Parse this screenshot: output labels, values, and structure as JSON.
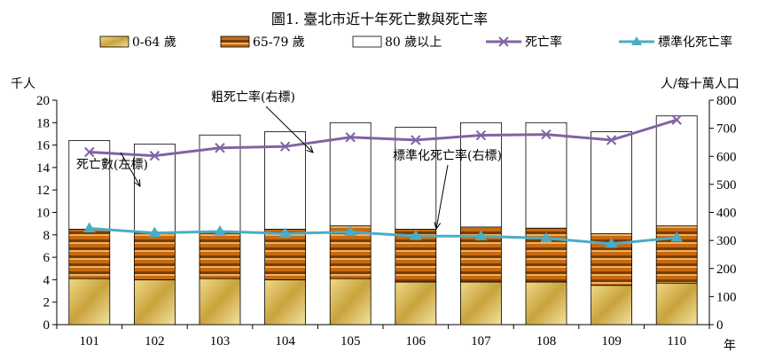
{
  "chart_data": {
    "type": "bar",
    "title": "圖1. 臺北市近十年死亡數與死亡率",
    "y_left_unit": "千人",
    "y_right_unit": "人/每十萬人口",
    "x_unit": "年",
    "categories": [
      "101",
      "102",
      "103",
      "104",
      "105",
      "106",
      "107",
      "108",
      "109",
      "110"
    ],
    "y_left_range": [
      0,
      20
    ],
    "y_left_ticks": [
      "0",
      "2",
      "4",
      "6",
      "8",
      "10",
      "12",
      "14",
      "16",
      "18",
      "20"
    ],
    "y_right_range": [
      0,
      800
    ],
    "y_right_ticks": [
      "0",
      "100",
      "200",
      "300",
      "400",
      "500",
      "600",
      "700",
      "800"
    ],
    "stack_series": [
      {
        "name": "0-64 歲",
        "color": "#c8a23a",
        "values": [
          4.1,
          4.0,
          4.1,
          4.0,
          4.1,
          3.8,
          3.8,
          3.8,
          3.5,
          3.7
        ]
      },
      {
        "name": "65-79 歲",
        "color": "#c46a10",
        "values": [
          4.4,
          4.2,
          4.2,
          4.5,
          4.7,
          4.7,
          4.9,
          4.8,
          4.6,
          5.1
        ]
      },
      {
        "name": "80 歲以上",
        "color": "#ffffff",
        "values": [
          7.9,
          7.9,
          8.6,
          8.7,
          9.2,
          9.1,
          9.3,
          9.4,
          9.1,
          9.8
        ]
      }
    ],
    "line_series": [
      {
        "name": "死亡率",
        "color": "#8064a2",
        "marker": "x",
        "values": [
          615,
          602,
          630,
          635,
          668,
          658,
          675,
          678,
          658,
          730
        ]
      },
      {
        "name": "標準化死亡率",
        "color": "#4bacc6",
        "marker": "triangle",
        "values": [
          343,
          327,
          332,
          325,
          330,
          316,
          315,
          308,
          288,
          310
        ]
      }
    ],
    "annotations": [
      {
        "text": "死亡數(左標)"
      },
      {
        "text": "粗死亡率(右標)"
      },
      {
        "text": "標準化死亡率(右標)"
      }
    ],
    "legend_position": "top",
    "grid": false
  }
}
